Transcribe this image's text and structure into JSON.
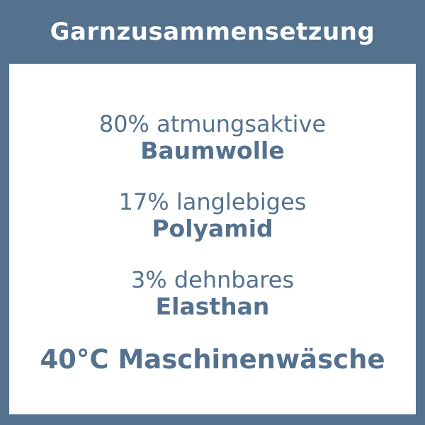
{
  "title": "Garnzusammensetzung",
  "colors": {
    "frame": "#54718e",
    "panel": "#ffffff",
    "title_text": "#fbfcfd",
    "body_text": "#54718e"
  },
  "composition": [
    {
      "descriptor": "80% atmungsaktive",
      "material": "Baumwolle"
    },
    {
      "descriptor": "17% langlebiges",
      "material": "Polyamid"
    },
    {
      "descriptor": "3% dehnbares",
      "material": "Elasthan"
    }
  ],
  "care_instruction": "40°C Maschinenwäsche"
}
